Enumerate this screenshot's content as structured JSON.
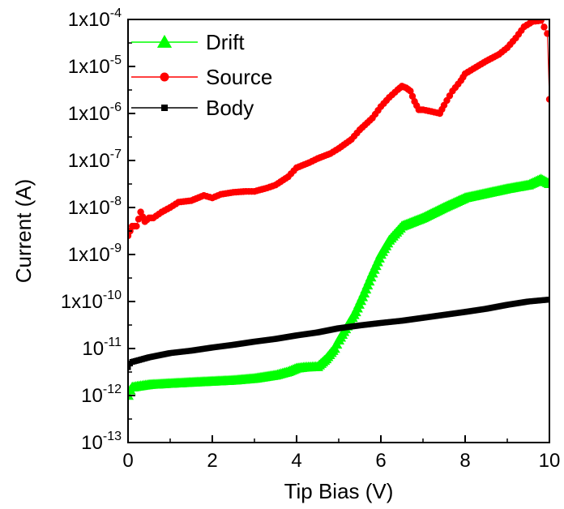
{
  "chart_data": {
    "type": "scatter",
    "title": "",
    "xlabel": "Tip Bias (V)",
    "ylabel": "Current (A)",
    "xlim": [
      0,
      10
    ],
    "ylim": [
      1e-13,
      0.0001
    ],
    "yscale": "log",
    "grid": false,
    "legend_position": "top-left",
    "x_ticks": [
      {
        "value": 0,
        "label": "0"
      },
      {
        "value": 2,
        "label": "2"
      },
      {
        "value": 4,
        "label": "4"
      },
      {
        "value": 6,
        "label": "6"
      },
      {
        "value": 8,
        "label": "8"
      },
      {
        "value": 10,
        "label": "10"
      }
    ],
    "y_ticks": [
      {
        "value": 1e-13,
        "base": "10",
        "exp": "-13"
      },
      {
        "value": 1e-12,
        "base": "10",
        "exp": "-12"
      },
      {
        "value": 1e-11,
        "base": "10",
        "exp": "-11"
      },
      {
        "value": 1e-10,
        "base": "1x10",
        "exp": "-10"
      },
      {
        "value": 1e-09,
        "base": "1x10",
        "exp": "-9"
      },
      {
        "value": 1e-08,
        "base": "1x10",
        "exp": "-8"
      },
      {
        "value": 1e-07,
        "base": "1x10",
        "exp": "-7"
      },
      {
        "value": 1e-06,
        "base": "1x10",
        "exp": "-6"
      },
      {
        "value": 1e-05,
        "base": "1x10",
        "exp": "-5"
      },
      {
        "value": 0.0001,
        "base": "1x10",
        "exp": "-4"
      }
    ],
    "series": [
      {
        "name": "Drift",
        "color": "#00ff00",
        "marker": "triangle",
        "x": [
          0.0,
          0.05,
          0.1,
          0.3,
          0.5,
          1.0,
          1.5,
          2.0,
          2.5,
          3.0,
          3.5,
          3.8,
          4.0,
          4.2,
          4.5,
          4.7,
          4.9,
          5.0,
          5.2,
          5.4,
          5.6,
          5.8,
          6.0,
          6.2,
          6.5,
          7.0,
          7.5,
          8.0,
          8.5,
          9.0,
          9.5,
          9.8,
          10.0
        ],
        "y": [
          1e-12,
          1.3e-12,
          1.5e-12,
          1.6e-12,
          1.7e-12,
          1.8e-12,
          1.9e-12,
          2e-12,
          2.1e-12,
          2.3e-12,
          2.7e-12,
          3.2e-12,
          3.8e-12,
          4e-12,
          4.1e-12,
          6e-12,
          1e-11,
          1.5e-11,
          3e-11,
          6e-11,
          1.5e-10,
          4e-10,
          1e-09,
          2e-09,
          4e-09,
          6e-09,
          1e-08,
          1.6e-08,
          2e-08,
          2.5e-08,
          3e-08,
          4e-08,
          3.2e-08
        ]
      },
      {
        "name": "Source",
        "color": "#ff0000",
        "marker": "circle",
        "x": [
          0.0,
          0.1,
          0.2,
          0.3,
          0.4,
          0.5,
          0.6,
          0.8,
          1.0,
          1.2,
          1.5,
          1.8,
          2.0,
          2.2,
          2.5,
          2.8,
          3.0,
          3.3,
          3.5,
          3.8,
          4.0,
          4.3,
          4.5,
          4.8,
          5.0,
          5.3,
          5.5,
          5.8,
          6.0,
          6.2,
          6.4,
          6.5,
          6.6,
          6.7,
          6.8,
          6.9,
          7.0,
          7.2,
          7.4,
          7.5,
          7.7,
          7.9,
          8.0,
          8.2,
          8.5,
          8.8,
          9.0,
          9.2,
          9.4,
          9.6,
          9.8,
          9.95,
          10.0
        ],
        "y": [
          2.5e-09,
          4e-09,
          4e-09,
          8e-09,
          5e-09,
          6e-09,
          6e-09,
          8e-09,
          1e-08,
          1.3e-08,
          1.4e-08,
          1.8e-08,
          1.6e-08,
          1.9e-08,
          2.1e-08,
          2.2e-08,
          2.2e-08,
          2.6e-08,
          3e-08,
          4.5e-08,
          7e-08,
          9e-08,
          1.1e-07,
          1.4e-07,
          1.8e-07,
          2.8e-07,
          4.5e-07,
          8e-07,
          1.4e-06,
          2.2e-06,
          3.2e-06,
          3.8e-06,
          3.5e-06,
          3e-06,
          1.8e-06,
          1.2e-06,
          1.2e-06,
          1.1e-06,
          1e-06,
          1.5e-06,
          3e-06,
          5e-06,
          7e-06,
          9e-06,
          1.3e-05,
          1.8e-05,
          2.5e-05,
          4e-05,
          7e-05,
          9e-05,
          9.5e-05,
          5e-05,
          2e-06
        ]
      },
      {
        "name": "Body",
        "color": "#000000",
        "marker": "square",
        "x": [
          0.0,
          0.05,
          0.1,
          0.3,
          0.5,
          1.0,
          1.5,
          2.0,
          2.5,
          3.0,
          3.5,
          4.0,
          4.5,
          5.0,
          5.5,
          6.0,
          6.5,
          7.0,
          7.5,
          8.0,
          8.5,
          9.0,
          9.5,
          10.0
        ],
        "y": [
          4e-12,
          4.8e-12,
          5.2e-12,
          5.8e-12,
          6.5e-12,
          8e-12,
          9e-12,
          1.05e-11,
          1.2e-11,
          1.4e-11,
          1.6e-11,
          1.9e-11,
          2.2e-11,
          2.7e-11,
          3.1e-11,
          3.5e-11,
          3.9e-11,
          4.5e-11,
          5.2e-11,
          6e-11,
          7e-11,
          8.5e-11,
          1e-10,
          1.1e-10
        ]
      }
    ]
  }
}
